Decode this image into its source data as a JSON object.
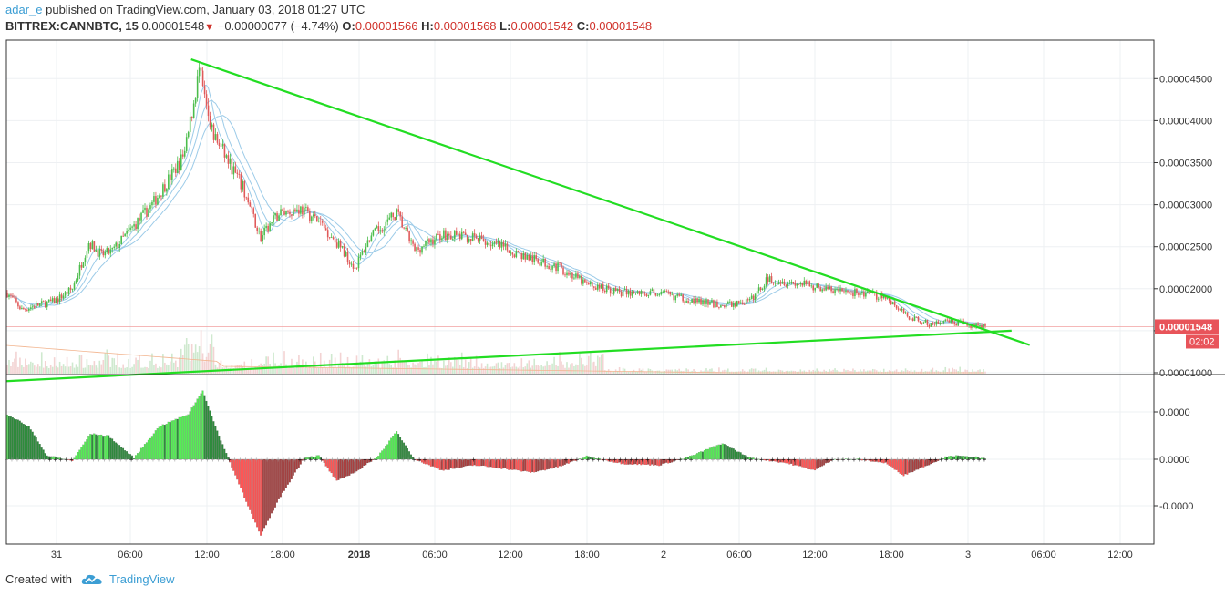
{
  "header": {
    "author": "adar_e",
    "published_text": "published on TradingView.com, January 03, 2018 01:27 UTC",
    "symbol": "BITTREX:CANNBTC, 15",
    "last": "0.00001548",
    "change": "−0.00000077 (−4.74%)",
    "o_label": "O:",
    "o_value": "0.00001566",
    "h_label": "H:",
    "h_value": "0.00001568",
    "l_label": "L:",
    "l_value": "0.00001542",
    "c_label": "C:",
    "c_value": "0.00001548"
  },
  "footer": {
    "created_with": "Created with",
    "brand": "TradingView"
  },
  "colors": {
    "up": "#4bbd4b",
    "down": "#e05a5a",
    "trend": "#22dd22",
    "ma": "#9ccbe8",
    "hist_up_light": "#55ee55",
    "hist_up_dark": "#2e8b3c",
    "hist_down_light": "#ff5555",
    "hist_down_dark": "#a84040"
  },
  "price_badge": {
    "value": "0.00001548",
    "countdown": "02:02"
  },
  "chart_data": {
    "type": "candlestick",
    "price_axis_ticks": [
      "0.00004500",
      "0.00004000",
      "0.00003500",
      "0.00003000",
      "0.00002500",
      "0.00002000",
      "0.00001500",
      "0.00001000"
    ],
    "price_axis_values": [
      4.5e-05,
      4e-05,
      3.5e-05,
      3e-05,
      2.5e-05,
      2e-05,
      1.5e-05,
      1e-05
    ],
    "oscillator_ticks": [
      "0.0000",
      "0.0000",
      "-0.0000"
    ],
    "time_ticks": [
      "31",
      "06:00",
      "12:00",
      "18:00",
      "2018",
      "06:00",
      "12:00",
      "18:00",
      "2",
      "06:00",
      "12:00",
      "18:00",
      "3",
      "06:00",
      "12:00"
    ],
    "close_path": [
      [
        0,
        1.95e-05
      ],
      [
        8,
        1.75e-05
      ],
      [
        16,
        1.8e-05
      ],
      [
        26,
        1.85e-05
      ],
      [
        36,
        2e-05
      ],
      [
        45,
        2.55e-05
      ],
      [
        52,
        2.4e-05
      ],
      [
        58,
        2.45e-05
      ],
      [
        66,
        2.65e-05
      ],
      [
        80,
        3e-05
      ],
      [
        92,
        3.4e-05
      ],
      [
        98,
        3.6e-05
      ],
      [
        106,
        4.6e-05
      ],
      [
        112,
        3.9e-05
      ],
      [
        120,
        3.6e-05
      ],
      [
        130,
        3.2e-05
      ],
      [
        140,
        2.6e-05
      ],
      [
        150,
        2.9e-05
      ],
      [
        162,
        2.95e-05
      ],
      [
        172,
        2.8e-05
      ],
      [
        182,
        2.55e-05
      ],
      [
        192,
        2.25e-05
      ],
      [
        200,
        2.6e-05
      ],
      [
        215,
        2.9e-05
      ],
      [
        225,
        2.45e-05
      ],
      [
        240,
        2.65e-05
      ],
      [
        258,
        2.6e-05
      ],
      [
        272,
        2.5e-05
      ],
      [
        290,
        2.35e-05
      ],
      [
        305,
        2.25e-05
      ],
      [
        320,
        2.05e-05
      ],
      [
        340,
        1.95e-05
      ],
      [
        360,
        1.95e-05
      ],
      [
        380,
        1.85e-05
      ],
      [
        395,
        1.8e-05
      ],
      [
        410,
        1.85e-05
      ],
      [
        420,
        2.12e-05
      ],
      [
        440,
        2.05e-05
      ],
      [
        456,
        1.98e-05
      ],
      [
        470,
        1.95e-05
      ],
      [
        485,
        1.9e-05
      ],
      [
        495,
        1.7e-05
      ],
      [
        508,
        1.58e-05
      ],
      [
        520,
        1.6e-05
      ],
      [
        535,
        1.56e-05
      ],
      [
        540,
        1.55e-05
      ]
    ],
    "oscillator_path": [
      [
        0,
        0.62
      ],
      [
        12,
        0.45
      ],
      [
        22,
        0.05
      ],
      [
        36,
        -0.02
      ],
      [
        46,
        0.35
      ],
      [
        56,
        0.32
      ],
      [
        70,
        0.02
      ],
      [
        84,
        0.45
      ],
      [
        100,
        0.62
      ],
      [
        108,
        0.95
      ],
      [
        115,
        0.45
      ],
      [
        122,
        0.02
      ],
      [
        140,
        -1.05
      ],
      [
        150,
        -0.55
      ],
      [
        164,
        0.02
      ],
      [
        172,
        0.05
      ],
      [
        182,
        -0.3
      ],
      [
        194,
        -0.15
      ],
      [
        205,
        0.05
      ],
      [
        215,
        0.38
      ],
      [
        225,
        0.0
      ],
      [
        240,
        -0.15
      ],
      [
        258,
        -0.08
      ],
      [
        272,
        -0.12
      ],
      [
        290,
        -0.18
      ],
      [
        305,
        -0.1
      ],
      [
        320,
        0.04
      ],
      [
        340,
        -0.06
      ],
      [
        360,
        -0.08
      ],
      [
        375,
        0.02
      ],
      [
        395,
        0.22
      ],
      [
        410,
        0.02
      ],
      [
        430,
        -0.05
      ],
      [
        446,
        -0.15
      ],
      [
        456,
        0.0
      ],
      [
        470,
        0.0
      ],
      [
        485,
        -0.05
      ],
      [
        495,
        -0.22
      ],
      [
        508,
        -0.08
      ],
      [
        520,
        0.05
      ],
      [
        535,
        0.03
      ],
      [
        540,
        0.0
      ]
    ],
    "trendlines": [
      {
        "name": "upper",
        "from": [
          102,
          4.73e-05
        ],
        "to": [
          565,
          1.33e-05
        ]
      },
      {
        "name": "lower",
        "from": [
          0,
          9e-06
        ],
        "to": [
          555,
          1.5e-05
        ]
      }
    ]
  }
}
